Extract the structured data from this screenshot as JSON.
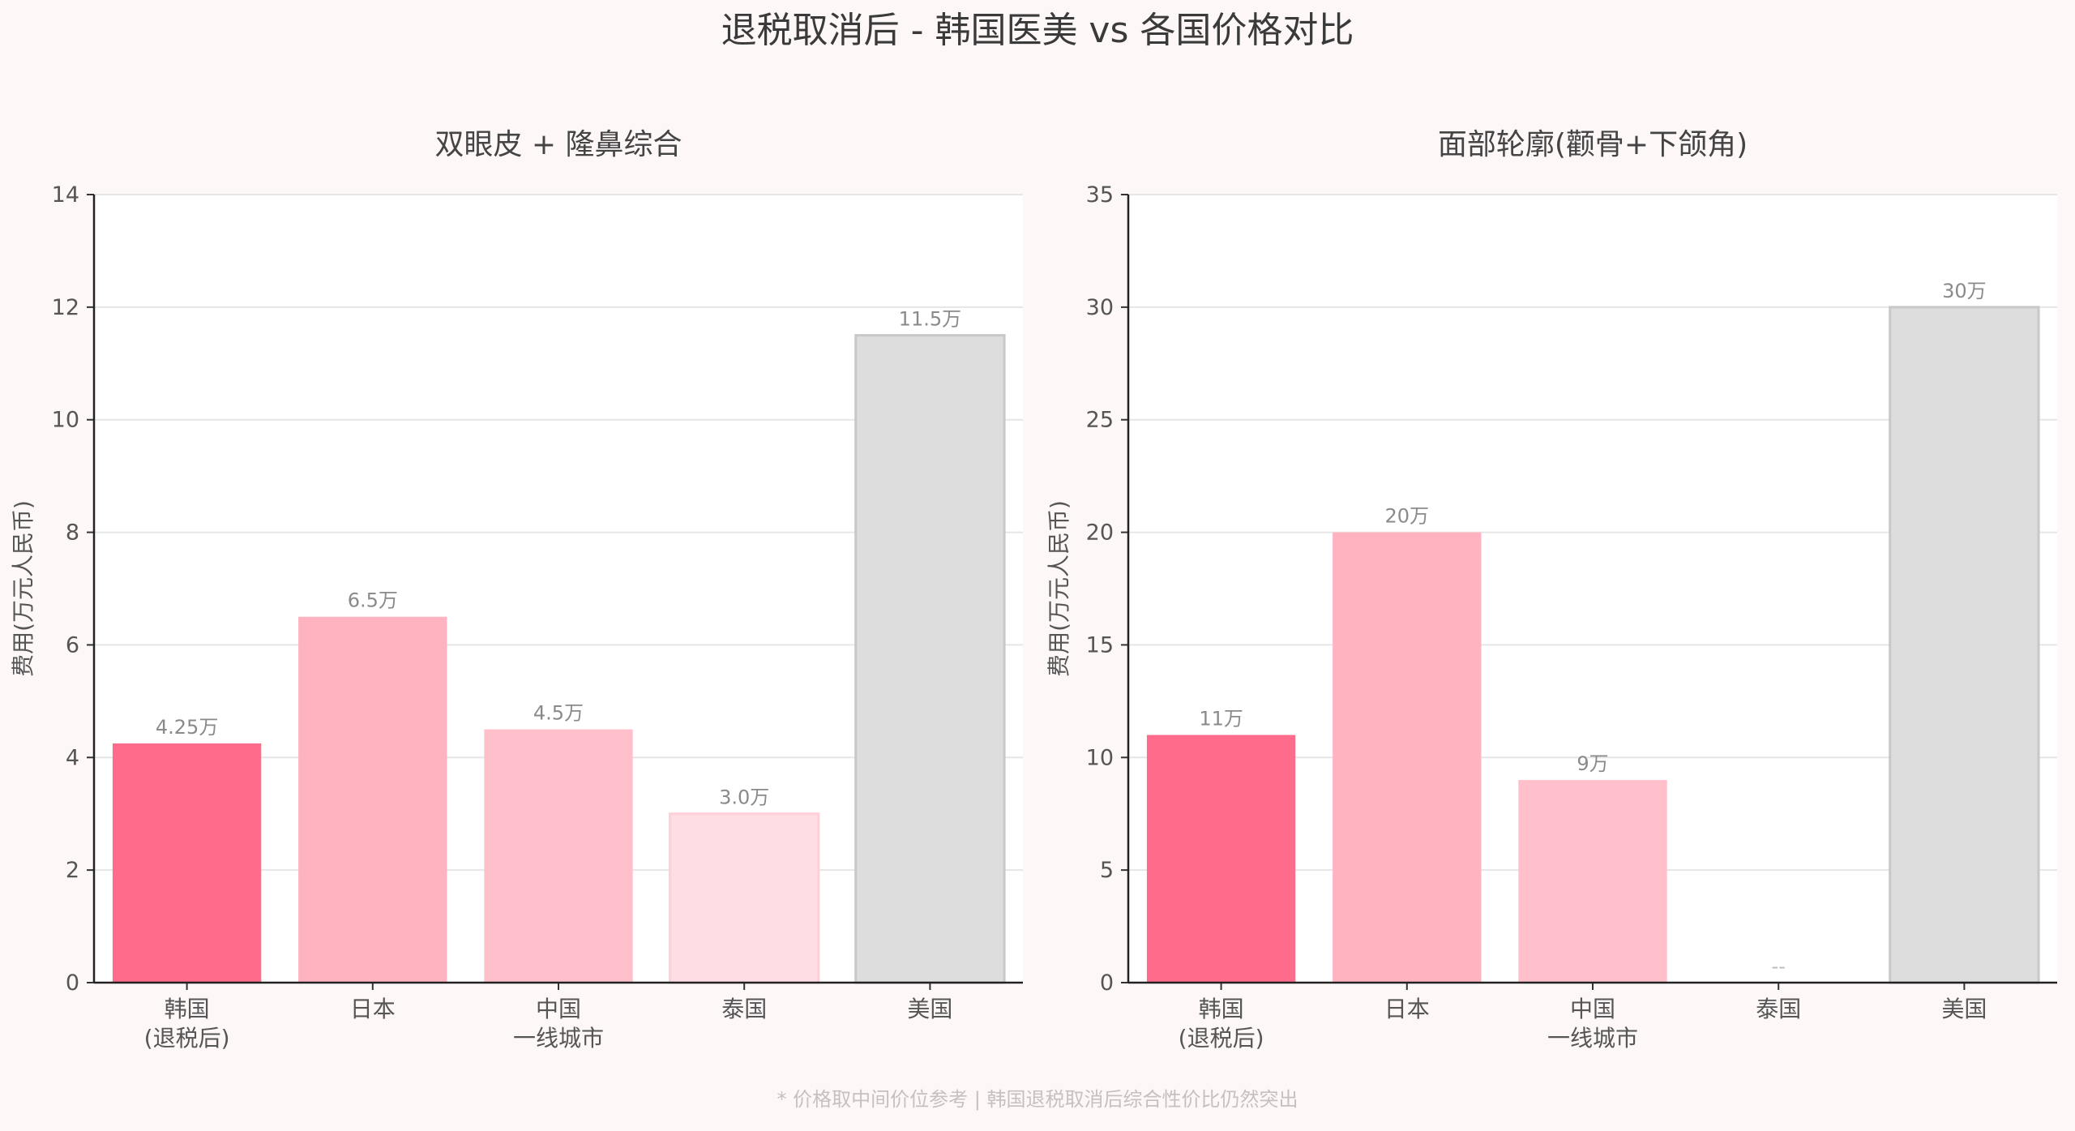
{
  "figure": {
    "title": "退税取消后 - 韩国医美 vs 各国价格对比",
    "footnote": "* 价格取中间价位参考 | 韩国退税取消后综合性价比仍然突出"
  },
  "chart_data": [
    {
      "type": "bar",
      "title": "双眼皮 + 隆鼻综合",
      "xlabel": "",
      "ylabel": "费用(万元人民币)",
      "categories": [
        "韩国\n(退税后)",
        "日本",
        "中国\n一线城市",
        "泰国",
        "美国"
      ],
      "values": [
        4.25,
        6.5,
        4.5,
        3.0,
        11.5
      ],
      "data_labels": [
        "4.25万",
        "6.5万",
        "4.5万",
        "3.0万",
        "11.5万"
      ],
      "colors": [
        "#ff6b8a",
        "#ffb3c1",
        "#ffc0cb",
        "#ffdde4",
        "#dddddd"
      ],
      "edge_colors": [
        null,
        null,
        null,
        "#ffd0da",
        "#c8c8c8"
      ],
      "ylim": [
        0,
        14
      ],
      "yticks": [
        0,
        2,
        4,
        6,
        8,
        10,
        12,
        14
      ],
      "grid": "y"
    },
    {
      "type": "bar",
      "title": "面部轮廓(颧骨+下颌角)",
      "xlabel": "",
      "ylabel": "费用(万元人民币)",
      "categories": [
        "韩国\n(退税后)",
        "日本",
        "中国\n一线城市",
        "泰国",
        "美国"
      ],
      "values": [
        11,
        20,
        9,
        0,
        30
      ],
      "data_labels": [
        "11万",
        "20万",
        "9万",
        "--",
        "30万"
      ],
      "colors": [
        "#ff6b8a",
        "#ffb3c1",
        "#ffc0cb",
        "#ffdde4",
        "#dddddd"
      ],
      "edge_colors": [
        null,
        null,
        null,
        "#ffd0da",
        "#c8c8c8"
      ],
      "ylim": [
        0,
        35
      ],
      "yticks": [
        0,
        5,
        10,
        15,
        20,
        25,
        30,
        35
      ],
      "grid": "y"
    }
  ]
}
